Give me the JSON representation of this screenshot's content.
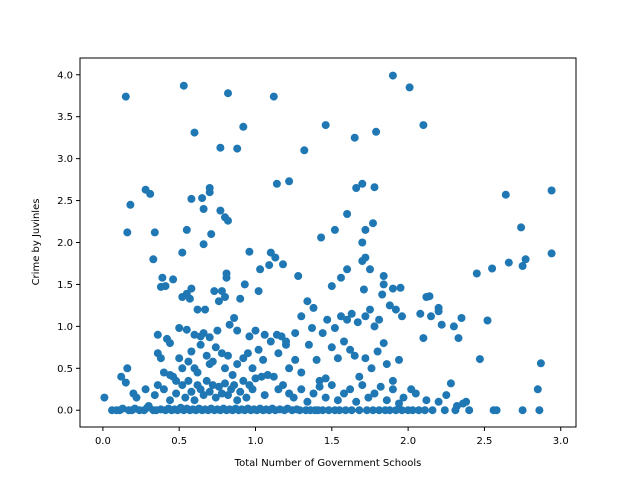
{
  "chart_data": {
    "type": "scatter",
    "title": "",
    "xlabel": "Total Number of Government Schools",
    "ylabel": "Crime by Juvinles",
    "xlim": [
      -0.15,
      3.1
    ],
    "ylim": [
      -0.2,
      4.2
    ],
    "xticks": [
      0.0,
      0.5,
      1.0,
      1.5,
      2.0,
      2.5,
      3.0
    ],
    "yticks": [
      0.0,
      0.5,
      1.0,
      1.5,
      2.0,
      2.5,
      3.0,
      3.5,
      4.0
    ],
    "xtick_labels": [
      "0.0",
      "0.5",
      "1.0",
      "1.5",
      "2.0",
      "2.5",
      "3.0"
    ],
    "ytick_labels": [
      "0.0",
      "0.5",
      "1.0",
      "1.5",
      "2.0",
      "2.5",
      "3.0",
      "3.5",
      "4.0"
    ],
    "grid": false,
    "marker_color": "#1f77b4",
    "points": [
      [
        0.15,
        3.74
      ],
      [
        0.53,
        3.87
      ],
      [
        0.82,
        3.78
      ],
      [
        1.12,
        3.74
      ],
      [
        1.9,
        3.99
      ],
      [
        2.01,
        3.85
      ],
      [
        0.6,
        3.31
      ],
      [
        0.77,
        3.13
      ],
      [
        0.92,
        3.38
      ],
      [
        0.88,
        3.12
      ],
      [
        1.32,
        3.1
      ],
      [
        1.46,
        3.4
      ],
      [
        1.65,
        3.25
      ],
      [
        1.79,
        3.32
      ],
      [
        2.1,
        3.4
      ],
      [
        0.28,
        2.63
      ],
      [
        0.31,
        2.58
      ],
      [
        0.18,
        2.45
      ],
      [
        0.16,
        2.12
      ],
      [
        0.34,
        2.12
      ],
      [
        0.58,
        2.52
      ],
      [
        0.65,
        2.53
      ],
      [
        0.7,
        2.65
      ],
      [
        0.7,
        2.6
      ],
      [
        0.66,
        2.4
      ],
      [
        0.77,
        2.38
      ],
      [
        0.8,
        2.3
      ],
      [
        0.82,
        2.26
      ],
      [
        0.55,
        2.15
      ],
      [
        0.66,
        1.98
      ],
      [
        0.71,
        2.1
      ],
      [
        1.14,
        2.7
      ],
      [
        1.22,
        2.73
      ],
      [
        1.6,
        2.34
      ],
      [
        1.66,
        2.65
      ],
      [
        1.7,
        2.7
      ],
      [
        1.78,
        2.66
      ],
      [
        1.77,
        2.23
      ],
      [
        1.72,
        2.15
      ],
      [
        1.52,
        2.15
      ],
      [
        1.43,
        2.06
      ],
      [
        1.7,
        2.0
      ],
      [
        2.64,
        2.57
      ],
      [
        2.94,
        2.62
      ],
      [
        2.74,
        2.18
      ],
      [
        1.1,
        1.88
      ],
      [
        0.33,
        1.8
      ],
      [
        0.39,
        1.58
      ],
      [
        0.38,
        1.47
      ],
      [
        0.41,
        1.48
      ],
      [
        0.46,
        1.56
      ],
      [
        0.52,
        1.88
      ],
      [
        0.52,
        1.35
      ],
      [
        0.55,
        1.39
      ],
      [
        0.57,
        1.33
      ],
      [
        0.58,
        1.45
      ],
      [
        0.67,
        1.2
      ],
      [
        0.62,
        1.2
      ],
      [
        0.73,
        1.42
      ],
      [
        0.76,
        1.3
      ],
      [
        0.8,
        1.35
      ],
      [
        0.81,
        1.63
      ],
      [
        0.81,
        1.58
      ],
      [
        0.78,
        1.42
      ],
      [
        0.9,
        1.33
      ],
      [
        0.93,
        1.5
      ],
      [
        0.96,
        1.89
      ],
      [
        1.03,
        1.68
      ],
      [
        1.09,
        1.73
      ],
      [
        1.13,
        1.82
      ],
      [
        1.18,
        1.74
      ],
      [
        1.02,
        1.42
      ],
      [
        1.28,
        1.6
      ],
      [
        1.34,
        1.3
      ],
      [
        1.38,
        1.22
      ],
      [
        1.5,
        1.48
      ],
      [
        1.56,
        1.58
      ],
      [
        1.6,
        1.68
      ],
      [
        1.72,
        1.82
      ],
      [
        1.7,
        1.78
      ],
      [
        1.71,
        1.44
      ],
      [
        1.75,
        1.68
      ],
      [
        1.84,
        1.6
      ],
      [
        1.84,
        1.5
      ],
      [
        1.9,
        1.45
      ],
      [
        1.83,
        1.38
      ],
      [
        1.95,
        1.46
      ],
      [
        2.14,
        1.36
      ],
      [
        2.12,
        1.35
      ],
      [
        2.2,
        1.22
      ],
      [
        2.45,
        1.63
      ],
      [
        2.55,
        1.69
      ],
      [
        2.66,
        1.76
      ],
      [
        2.75,
        1.72
      ],
      [
        2.77,
        1.8
      ],
      [
        2.94,
        1.87
      ],
      [
        0.36,
        0.9
      ],
      [
        0.42,
        0.85
      ],
      [
        0.44,
        0.8
      ],
      [
        0.5,
        0.98
      ],
      [
        0.55,
        0.96
      ],
      [
        0.6,
        0.9
      ],
      [
        0.64,
        0.88
      ],
      [
        0.66,
        0.92
      ],
      [
        0.7,
        0.87
      ],
      [
        0.75,
        0.95
      ],
      [
        0.83,
        1.02
      ],
      [
        0.86,
        1.1
      ],
      [
        0.88,
        0.95
      ],
      [
        0.96,
        0.88
      ],
      [
        1.0,
        0.95
      ],
      [
        1.06,
        0.9
      ],
      [
        1.14,
        0.9
      ],
      [
        1.17,
        0.88
      ],
      [
        1.2,
        0.82
      ],
      [
        1.26,
        0.92
      ],
      [
        1.3,
        1.12
      ],
      [
        1.37,
        0.98
      ],
      [
        1.44,
        0.92
      ],
      [
        1.47,
        1.08
      ],
      [
        1.52,
        0.98
      ],
      [
        1.56,
        1.12
      ],
      [
        1.6,
        1.08
      ],
      [
        1.63,
        1.15
      ],
      [
        1.67,
        1.05
      ],
      [
        1.72,
        1.12
      ],
      [
        1.75,
        1.2
      ],
      [
        1.78,
        1.0
      ],
      [
        1.81,
        1.08
      ],
      [
        1.88,
        1.25
      ],
      [
        1.92,
        1.2
      ],
      [
        1.96,
        1.12
      ],
      [
        2.08,
        1.15
      ],
      [
        2.15,
        1.12
      ],
      [
        2.2,
        1.18
      ],
      [
        2.22,
        1.02
      ],
      [
        2.3,
        1.0
      ],
      [
        2.33,
        0.86
      ],
      [
        2.52,
        1.07
      ],
      [
        2.35,
        1.1
      ],
      [
        0.36,
        0.68
      ],
      [
        0.38,
        0.62
      ],
      [
        0.4,
        0.45
      ],
      [
        0.44,
        0.42
      ],
      [
        0.48,
        0.35
      ],
      [
        0.5,
        0.62
      ],
      [
        0.52,
        0.5
      ],
      [
        0.56,
        0.58
      ],
      [
        0.58,
        0.7
      ],
      [
        0.6,
        0.5
      ],
      [
        0.62,
        0.45
      ],
      [
        0.64,
        0.78
      ],
      [
        0.68,
        0.65
      ],
      [
        0.7,
        0.55
      ],
      [
        0.72,
        0.58
      ],
      [
        0.74,
        0.75
      ],
      [
        0.78,
        0.68
      ],
      [
        0.8,
        0.5
      ],
      [
        0.82,
        0.65
      ],
      [
        0.85,
        0.42
      ],
      [
        0.88,
        0.55
      ],
      [
        0.92,
        0.62
      ],
      [
        0.95,
        0.68
      ],
      [
        0.98,
        0.5
      ],
      [
        1.02,
        0.72
      ],
      [
        1.05,
        0.6
      ],
      [
        1.1,
        0.82
      ],
      [
        1.15,
        0.68
      ],
      [
        1.2,
        0.78
      ],
      [
        1.22,
        0.5
      ],
      [
        1.26,
        0.6
      ],
      [
        1.3,
        0.45
      ],
      [
        1.35,
        0.78
      ],
      [
        1.4,
        0.6
      ],
      [
        1.42,
        0.35
      ],
      [
        1.46,
        0.38
      ],
      [
        1.5,
        0.75
      ],
      [
        1.54,
        0.62
      ],
      [
        1.58,
        0.82
      ],
      [
        1.62,
        0.72
      ],
      [
        1.65,
        0.65
      ],
      [
        1.68,
        0.4
      ],
      [
        1.72,
        0.62
      ],
      [
        1.76,
        0.5
      ],
      [
        1.8,
        0.7
      ],
      [
        1.84,
        0.8
      ],
      [
        1.86,
        0.55
      ],
      [
        1.9,
        0.35
      ],
      [
        1.94,
        0.6
      ],
      [
        2.1,
        0.86
      ],
      [
        2.38,
        0.1
      ],
      [
        2.47,
        0.61
      ],
      [
        2.87,
        0.56
      ],
      [
        2.85,
        0.25
      ],
      [
        0.16,
        0.5
      ],
      [
        0.12,
        0.4
      ],
      [
        0.15,
        0.33
      ],
      [
        0.2,
        0.2
      ],
      [
        0.22,
        0.15
      ],
      [
        0.28,
        0.25
      ],
      [
        0.3,
        0.05
      ],
      [
        0.34,
        0.18
      ],
      [
        0.36,
        0.3
      ],
      [
        0.4,
        0.25
      ],
      [
        0.44,
        0.12
      ],
      [
        0.46,
        0.4
      ],
      [
        0.48,
        0.2
      ],
      [
        0.52,
        0.3
      ],
      [
        0.54,
        0.15
      ],
      [
        0.56,
        0.35
      ],
      [
        0.58,
        0.22
      ],
      [
        0.6,
        0.12
      ],
      [
        0.62,
        0.3
      ],
      [
        0.64,
        0.25
      ],
      [
        0.66,
        0.18
      ],
      [
        0.68,
        0.35
      ],
      [
        0.7,
        0.22
      ],
      [
        0.72,
        0.3
      ],
      [
        0.74,
        0.15
      ],
      [
        0.76,
        0.28
      ],
      [
        0.78,
        0.2
      ],
      [
        0.8,
        0.32
      ],
      [
        0.82,
        0.18
      ],
      [
        0.84,
        0.25
      ],
      [
        0.86,
        0.3
      ],
      [
        0.88,
        0.12
      ],
      [
        0.9,
        0.22
      ],
      [
        0.92,
        0.35
      ],
      [
        0.94,
        0.15
      ],
      [
        0.96,
        0.3
      ],
      [
        0.98,
        0.25
      ],
      [
        1.0,
        0.38
      ],
      [
        1.04,
        0.4
      ],
      [
        1.06,
        0.18
      ],
      [
        1.08,
        0.42
      ],
      [
        1.12,
        0.4
      ],
      [
        1.15,
        0.25
      ],
      [
        1.18,
        0.3
      ],
      [
        1.22,
        0.2
      ],
      [
        1.25,
        0.15
      ],
      [
        1.3,
        0.25
      ],
      [
        1.34,
        0.1
      ],
      [
        1.38,
        0.2
      ],
      [
        1.42,
        0.28
      ],
      [
        1.46,
        0.15
      ],
      [
        1.5,
        0.3
      ],
      [
        1.54,
        0.12
      ],
      [
        1.58,
        0.2
      ],
      [
        1.62,
        0.25
      ],
      [
        1.66,
        0.1
      ],
      [
        1.7,
        0.3
      ],
      [
        1.74,
        0.15
      ],
      [
        1.78,
        0.2
      ],
      [
        1.82,
        0.28
      ],
      [
        1.86,
        0.12
      ],
      [
        1.9,
        0.25
      ],
      [
        1.94,
        0.08
      ],
      [
        1.97,
        0.15
      ],
      [
        2.02,
        0.25
      ],
      [
        2.05,
        0.2
      ],
      [
        2.12,
        0.12
      ],
      [
        2.2,
        0.1
      ],
      [
        2.25,
        0.18
      ],
      [
        2.28,
        0.32
      ],
      [
        2.32,
        0.05
      ],
      [
        2.36,
        0.08
      ],
      [
        0.01,
        0.15
      ],
      [
        0.06,
        0.0
      ],
      [
        0.09,
        0.0
      ],
      [
        0.11,
        0.0
      ],
      [
        0.13,
        0.02
      ],
      [
        0.17,
        0.0
      ],
      [
        0.19,
        0.0
      ],
      [
        0.21,
        0.02
      ],
      [
        0.24,
        0.0
      ],
      [
        0.27,
        0.0
      ],
      [
        0.29,
        0.03
      ],
      [
        0.33,
        0.0
      ],
      [
        0.35,
        0.0
      ],
      [
        0.38,
        0.01
      ],
      [
        0.41,
        0.0
      ],
      [
        0.43,
        0.02
      ],
      [
        0.45,
        0.0
      ],
      [
        0.47,
        0.01
      ],
      [
        0.49,
        0.0
      ],
      [
        0.51,
        0.03
      ],
      [
        0.53,
        0.0
      ],
      [
        0.55,
        0.02
      ],
      [
        0.57,
        0.0
      ],
      [
        0.59,
        0.01
      ],
      [
        0.61,
        0.0
      ],
      [
        0.63,
        0.02
      ],
      [
        0.65,
        0.0
      ],
      [
        0.67,
        0.01
      ],
      [
        0.69,
        0.0
      ],
      [
        0.71,
        0.02
      ],
      [
        0.73,
        0.0
      ],
      [
        0.75,
        0.01
      ],
      [
        0.77,
        0.0
      ],
      [
        0.79,
        0.02
      ],
      [
        0.81,
        0.0
      ],
      [
        0.83,
        0.01
      ],
      [
        0.85,
        0.0
      ],
      [
        0.87,
        0.02
      ],
      [
        0.89,
        0.0
      ],
      [
        0.91,
        0.01
      ],
      [
        0.93,
        0.0
      ],
      [
        0.95,
        0.02
      ],
      [
        0.97,
        0.0
      ],
      [
        0.99,
        0.01
      ],
      [
        1.01,
        0.0
      ],
      [
        1.03,
        0.02
      ],
      [
        1.05,
        0.0
      ],
      [
        1.07,
        0.01
      ],
      [
        1.09,
        0.0
      ],
      [
        1.11,
        0.02
      ],
      [
        1.13,
        0.0
      ],
      [
        1.16,
        0.01
      ],
      [
        1.19,
        0.0
      ],
      [
        1.21,
        0.02
      ],
      [
        1.24,
        0.0
      ],
      [
        1.27,
        0.01
      ],
      [
        1.29,
        0.0
      ],
      [
        1.33,
        0.0
      ],
      [
        1.36,
        0.0
      ],
      [
        1.39,
        0.0
      ],
      [
        1.41,
        0.0
      ],
      [
        1.44,
        0.0
      ],
      [
        1.48,
        0.0
      ],
      [
        1.52,
        0.0
      ],
      [
        1.55,
        0.0
      ],
      [
        1.59,
        0.0
      ],
      [
        1.63,
        0.0
      ],
      [
        1.68,
        0.0
      ],
      [
        1.73,
        0.0
      ],
      [
        1.77,
        0.0
      ],
      [
        1.81,
        0.0
      ],
      [
        1.85,
        0.0
      ],
      [
        1.88,
        0.0
      ],
      [
        1.92,
        0.0
      ],
      [
        1.96,
        0.0
      ],
      [
        2.0,
        0.0
      ],
      [
        2.03,
        0.0
      ],
      [
        2.07,
        0.0
      ],
      [
        2.11,
        0.0
      ],
      [
        2.16,
        0.0
      ],
      [
        2.24,
        0.0
      ],
      [
        2.31,
        0.0
      ],
      [
        2.4,
        0.0
      ],
      [
        2.56,
        0.0
      ],
      [
        2.58,
        0.0
      ],
      [
        2.75,
        0.0
      ],
      [
        2.86,
        0.0
      ]
    ]
  }
}
